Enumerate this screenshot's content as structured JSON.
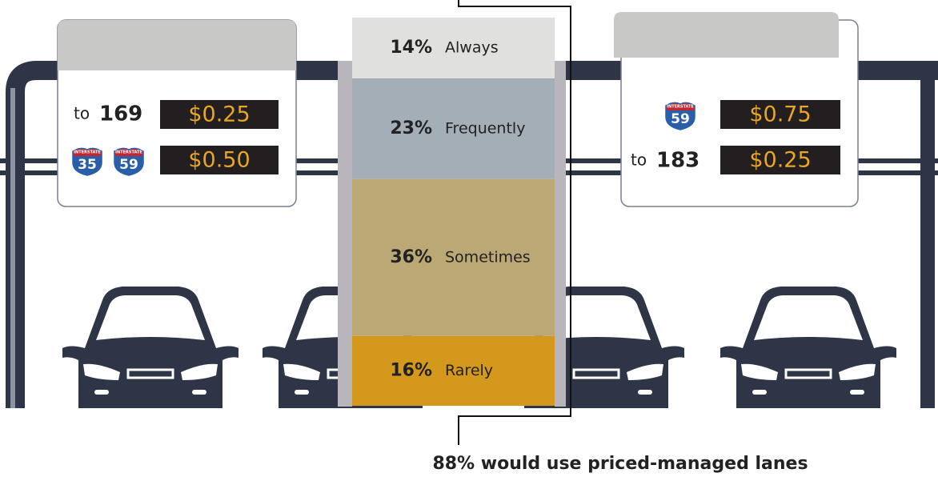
{
  "chart_data": {
    "type": "stacked_bar",
    "categories": [
      "Always",
      "Frequently",
      "Sometimes",
      "Rarely"
    ],
    "values": [
      14,
      23,
      36,
      16
    ],
    "value_labels": [
      "14%",
      "23%",
      "36%",
      "16%"
    ],
    "colors": [
      "#e0e1df",
      "#a3aeb7",
      "#bca874",
      "#d4981c"
    ],
    "annotation": "88% would use priced-managed lanes"
  },
  "signs": [
    {
      "rows": [
        {
          "prefix": "to",
          "route": "169",
          "price": "$0.25"
        },
        {
          "shields": [
            {
              "top": "INTERSTATE",
              "number": "35"
            },
            {
              "top": "INTERSTATE",
              "number": "59"
            }
          ],
          "price": "$0.50"
        }
      ]
    },
    {
      "rows": [
        {
          "shields": [
            {
              "top": "INTERSTATE",
              "number": "59"
            }
          ],
          "price": "$0.75"
        },
        {
          "prefix": "to",
          "route": "183",
          "price": "$0.25"
        }
      ]
    }
  ]
}
